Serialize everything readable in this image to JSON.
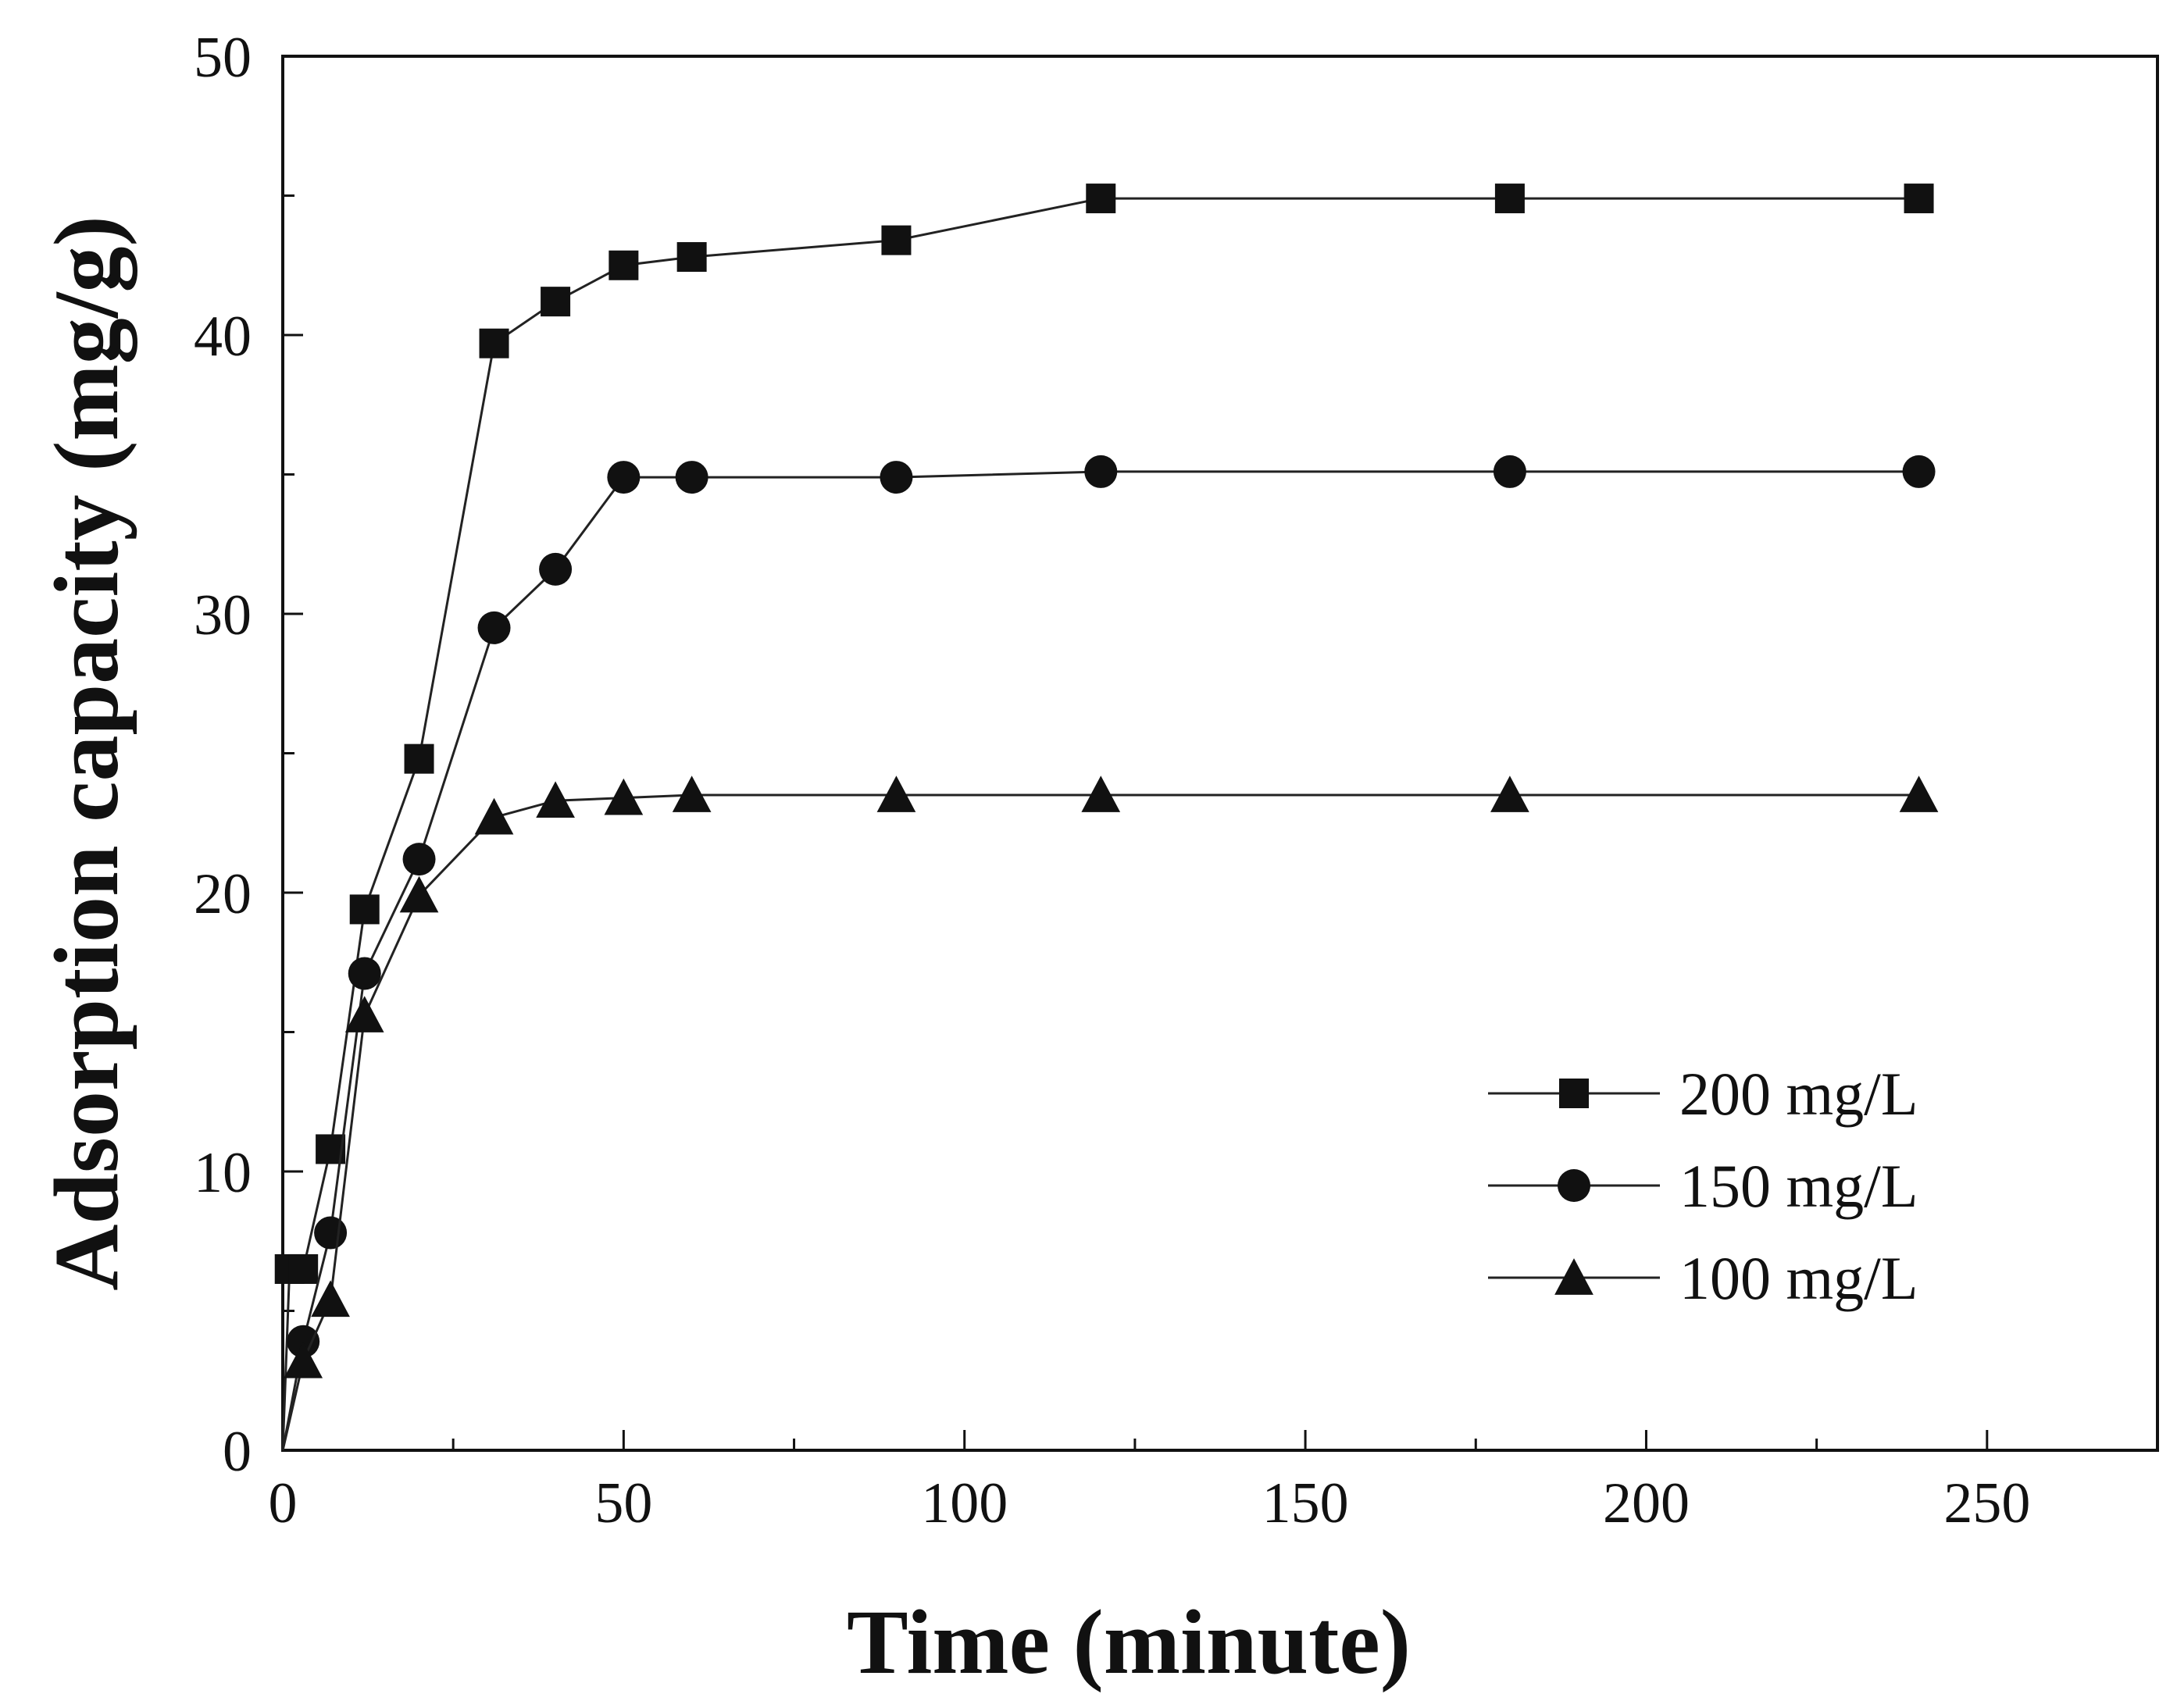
{
  "chart_data": {
    "type": "line",
    "title": "",
    "xlabel": "Time (minute)",
    "ylabel": "Adsorption capacity (mg/g)",
    "xlim": [
      0,
      275
    ],
    "ylim": [
      0,
      50
    ],
    "xticks": [
      0,
      50,
      100,
      150,
      200,
      250
    ],
    "yticks": [
      0,
      10,
      20,
      30,
      40,
      50
    ],
    "grid": false,
    "legend_position": "right",
    "series": [
      {
        "name": "200 mg/L",
        "marker": "square",
        "x": [
          0,
          1,
          3,
          7,
          12,
          20,
          31,
          40,
          50,
          60,
          90,
          120,
          180,
          240
        ],
        "y": [
          0,
          6.5,
          6.5,
          10.8,
          19.4,
          24.8,
          39.7,
          41.2,
          42.5,
          42.8,
          43.4,
          44.9,
          44.9,
          44.9
        ]
      },
      {
        "name": "150 mg/L",
        "marker": "circle",
        "x": [
          0,
          3,
          7,
          12,
          20,
          31,
          40,
          50,
          60,
          90,
          120,
          180,
          240
        ],
        "y": [
          0,
          3.9,
          7.8,
          17.1,
          21.2,
          29.5,
          31.6,
          34.9,
          34.9,
          34.9,
          35.1,
          35.1,
          35.1
        ]
      },
      {
        "name": "100 mg/L",
        "marker": "triangle",
        "x": [
          0,
          3,
          7,
          12,
          20,
          31,
          40,
          50,
          60,
          90,
          120,
          180,
          240
        ],
        "y": [
          0,
          3.2,
          5.4,
          15.6,
          19.9,
          22.7,
          23.3,
          23.4,
          23.5,
          23.5,
          23.5,
          23.5,
          23.5
        ]
      }
    ]
  }
}
